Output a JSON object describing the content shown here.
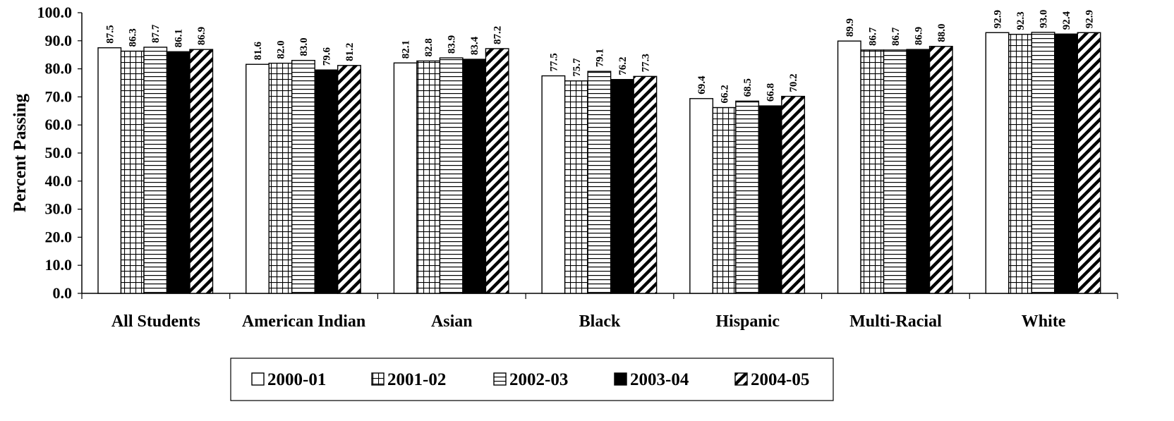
{
  "chart_data": {
    "type": "bar",
    "title": "",
    "xlabel": "",
    "ylabel": "Percent Passing",
    "ylim": [
      0,
      100
    ],
    "yticks": [
      "0.0",
      "10.0",
      "20.0",
      "30.0",
      "40.0",
      "50.0",
      "60.0",
      "70.0",
      "80.0",
      "90.0",
      "100.0"
    ],
    "grid": false,
    "legend_position": "bottom",
    "categories": [
      "All Students",
      "American Indian",
      "Asian",
      "Black",
      "Hispanic",
      "Multi-Racial",
      "White"
    ],
    "series": [
      {
        "name": "2000-01",
        "pattern": "solid-white",
        "values": [
          87.5,
          81.6,
          82.1,
          77.5,
          69.4,
          89.9,
          92.9
        ]
      },
      {
        "name": "2001-02",
        "pattern": "grid",
        "values": [
          86.3,
          82.0,
          82.8,
          75.7,
          66.2,
          86.7,
          92.3
        ]
      },
      {
        "name": "2002-03",
        "pattern": "horizontal-lines",
        "values": [
          87.7,
          83.0,
          83.9,
          79.1,
          68.5,
          86.7,
          93.0
        ]
      },
      {
        "name": "2003-04",
        "pattern": "solid-black",
        "values": [
          86.1,
          79.6,
          83.4,
          76.2,
          66.8,
          86.9,
          92.4
        ]
      },
      {
        "name": "2004-05",
        "pattern": "diagonal",
        "values": [
          86.9,
          81.2,
          87.2,
          77.3,
          70.2,
          88.0,
          92.9
        ]
      }
    ],
    "colors": {
      "bar_stroke": "#000000",
      "background": "#ffffff"
    }
  }
}
